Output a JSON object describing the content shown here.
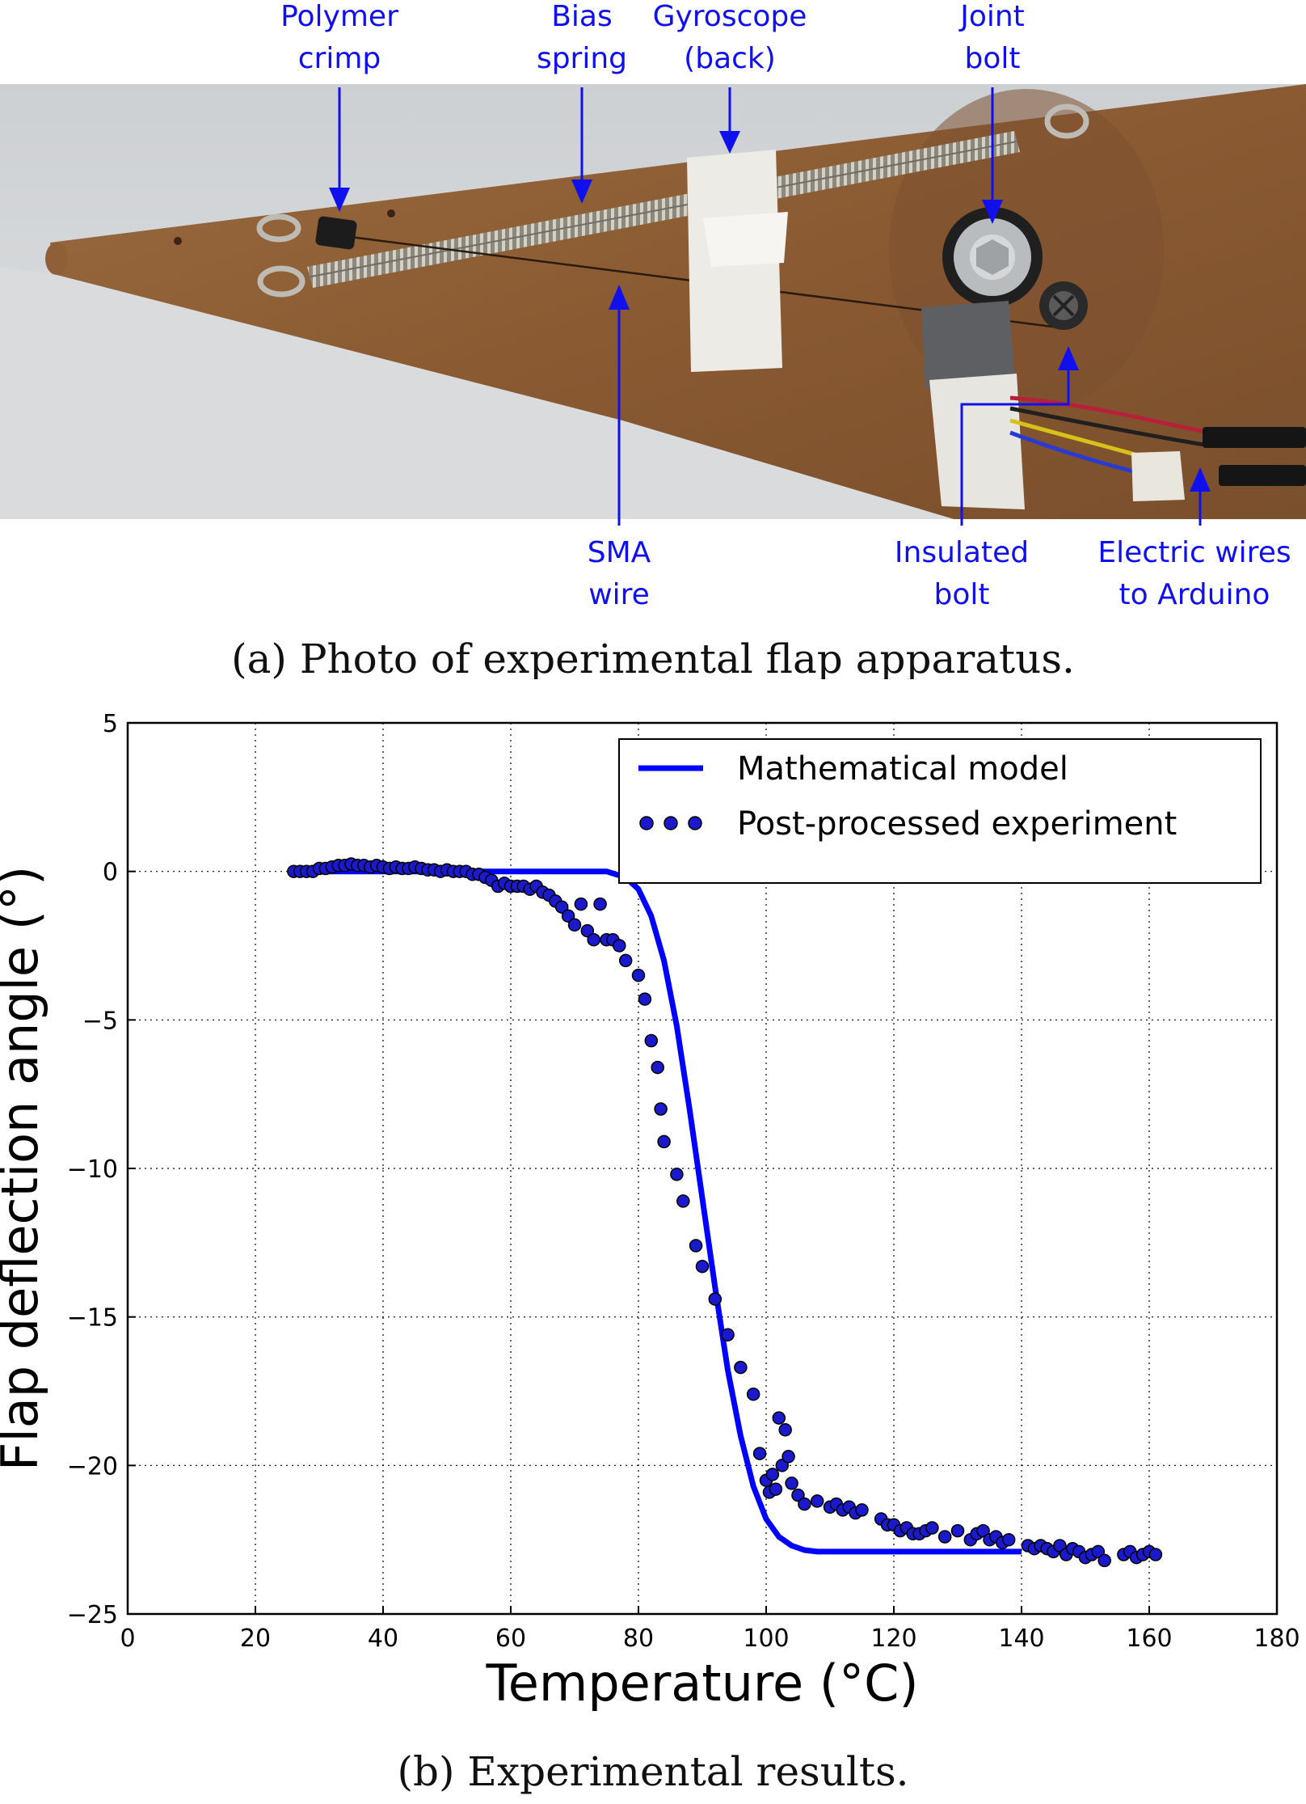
{
  "figure_a": {
    "caption": "(a) Photo of experimental flap apparatus.",
    "labels": {
      "polymer_crimp": [
        "Polymer",
        "crimp"
      ],
      "bias_spring": [
        "Bias",
        "spring"
      ],
      "gyroscope": [
        "Gyroscope",
        "(back)"
      ],
      "joint_bolt": [
        "Joint",
        "bolt"
      ],
      "sma_wire": [
        "SMA",
        "wire"
      ],
      "insulated_bolt": [
        "Insulated",
        "bolt"
      ],
      "electric_wires": [
        "Electric wires",
        "to Arduino"
      ]
    },
    "colors": {
      "annotation": "#1010ee",
      "wall": "#d6d8da",
      "board": "#8a5a32"
    }
  },
  "figure_b": {
    "caption": "(b) Experimental results.",
    "chart_data": {
      "type": "scatter",
      "xlabel": "Temperature (°C)",
      "ylabel": "Flap deflection angle (°)",
      "xlim": [
        0,
        180
      ],
      "ylim": [
        -25,
        5
      ],
      "xticks": [
        0,
        20,
        40,
        60,
        80,
        100,
        120,
        140,
        160,
        180
      ],
      "yticks": [
        5,
        0,
        -5,
        -10,
        -15,
        -20,
        -25
      ],
      "ytick_labels": [
        "5",
        "0",
        "−5",
        "−10",
        "−15",
        "−20",
        "−25"
      ],
      "grid": true,
      "legend_position": "top-right",
      "series": [
        {
          "name": "Mathematical model",
          "type": "line",
          "color": "#0000ff",
          "x": [
            30,
            40,
            50,
            60,
            70,
            75,
            78,
            80,
            82,
            84,
            86,
            88,
            90,
            92,
            94,
            96,
            98,
            100,
            102,
            104,
            106,
            108,
            110,
            115,
            120,
            130,
            140
          ],
          "y": [
            0,
            0,
            0,
            0,
            0,
            0,
            -0.2,
            -0.6,
            -1.5,
            -3.0,
            -5.2,
            -8.0,
            -11.0,
            -14.0,
            -16.8,
            -19.0,
            -20.7,
            -21.8,
            -22.4,
            -22.7,
            -22.85,
            -22.9,
            -22.9,
            -22.9,
            -22.9,
            -22.9,
            -22.9
          ]
        },
        {
          "name": "Post-processed experiment",
          "type": "scatter",
          "color": "#1a1acc",
          "x": [
            26,
            27,
            28,
            29,
            30,
            31,
            32,
            33,
            34,
            35,
            36,
            37,
            38,
            39,
            40,
            41,
            42,
            43,
            44,
            45,
            46,
            47,
            48,
            49,
            50,
            51,
            52,
            53,
            54,
            55,
            56,
            57,
            58,
            59,
            60,
            61,
            62,
            63,
            64,
            65,
            66,
            67,
            68,
            69,
            70,
            71,
            72,
            73,
            74,
            75,
            76,
            77,
            78,
            80,
            81,
            82,
            83,
            83.5,
            84,
            86,
            87,
            89,
            90,
            92,
            94,
            96,
            98,
            99,
            100,
            100.5,
            101,
            101.5,
            102,
            102.5,
            103,
            103.5,
            104,
            105,
            106,
            108,
            110,
            111,
            112,
            113,
            114,
            115,
            118,
            119,
            120,
            121,
            122,
            123,
            124,
            125,
            126,
            128,
            130,
            132,
            133,
            134,
            135,
            136,
            137,
            138,
            141,
            142,
            143,
            144,
            145,
            146,
            147,
            148,
            149,
            150,
            151,
            152,
            153,
            156,
            157,
            158,
            159,
            160,
            161
          ],
          "y": [
            0,
            0,
            0,
            0,
            0.1,
            0.1,
            0.15,
            0.2,
            0.2,
            0.25,
            0.2,
            0.2,
            0.15,
            0.2,
            0.15,
            0.1,
            0.15,
            0.1,
            0.1,
            0.15,
            0.1,
            0.05,
            0.05,
            0,
            0.05,
            0,
            0,
            0,
            -0.1,
            -0.1,
            -0.2,
            -0.3,
            -0.5,
            -0.4,
            -0.5,
            -0.5,
            -0.5,
            -0.6,
            -0.5,
            -0.7,
            -0.8,
            -1.0,
            -1.2,
            -1.5,
            -1.8,
            -1.1,
            -2.0,
            -2.3,
            -1.1,
            -2.3,
            -2.3,
            -2.5,
            -3.0,
            -3.5,
            -4.3,
            -5.7,
            -6.6,
            -8.0,
            -9.1,
            -10.2,
            -11.1,
            -12.6,
            -13.3,
            -14.4,
            -15.6,
            -16.7,
            -17.6,
            -19.6,
            -20.5,
            -20.9,
            -20.3,
            -20.8,
            -18.4,
            -20.0,
            -18.8,
            -19.7,
            -20.6,
            -21.0,
            -21.3,
            -21.2,
            -21.4,
            -21.3,
            -21.5,
            -21.4,
            -21.6,
            -21.5,
            -21.8,
            -22.0,
            -22.0,
            -22.2,
            -22.1,
            -22.3,
            -22.3,
            -22.2,
            -22.1,
            -22.4,
            -22.2,
            -22.5,
            -22.3,
            -22.2,
            -22.5,
            -22.4,
            -22.6,
            -22.5,
            -22.7,
            -22.8,
            -22.7,
            -22.8,
            -22.9,
            -22.7,
            -23.0,
            -22.8,
            -22.9,
            -23.1,
            -23.0,
            -22.9,
            -23.2,
            -23.0,
            -22.9,
            -23.1,
            -23.0,
            -22.9,
            -23.0
          ]
        }
      ]
    }
  }
}
